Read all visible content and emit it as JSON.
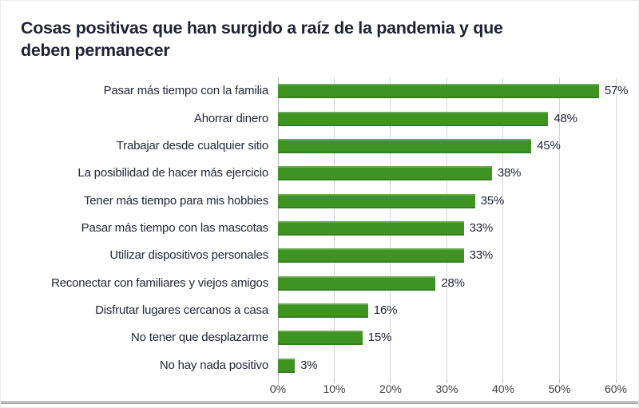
{
  "header": {
    "title_line1": "Cosas positivas que han surgido a raíz de la pandemia y que",
    "title_line2": "deben permanecer"
  },
  "chart_data": {
    "type": "bar",
    "orientation": "horizontal",
    "title": "Cosas positivas que han surgido a raíz de la pandemia y que deben permanecer",
    "categories": [
      "Pasar más tiempo con la familia",
      "Ahorrar dinero",
      "Trabajar desde cualquier sitio",
      "La posibilidad de hacer más ejercicio",
      "Tener más tiempo para mis hobbies",
      "Pasar más tiempo con las mascotas",
      "Utilizar dispositivos personales",
      "Reconectar con familiares y viejos amigos",
      "Disfrutar lugares cercanos a casa",
      "No tener que desplazarme",
      "No hay nada positivo"
    ],
    "values": [
      57,
      48,
      45,
      38,
      35,
      33,
      33,
      28,
      16,
      15,
      3
    ],
    "value_labels": [
      "57%",
      "48%",
      "45%",
      "38%",
      "35%",
      "33%",
      "33%",
      "28%",
      "16%",
      "15%",
      "3%"
    ],
    "xlabel": "",
    "ylabel": "",
    "xlim": [
      0,
      60
    ],
    "xticks": [
      0,
      10,
      20,
      30,
      40,
      50,
      60
    ],
    "xtick_labels": [
      "0%",
      "10%",
      "20%",
      "30%",
      "40%",
      "50%",
      "60%"
    ],
    "grid": "vertical",
    "legend": "none",
    "colors": {
      "bar": "#3E9323",
      "gridline": "#D6D6D6",
      "axis_line": "#BDBDBD",
      "title": "#1F2333",
      "category_label": "#232838",
      "value_label": "#1F2333",
      "tick_label": "#404040",
      "background": "#FFFFFF",
      "bottom_edge": "#A2A2A2"
    }
  }
}
